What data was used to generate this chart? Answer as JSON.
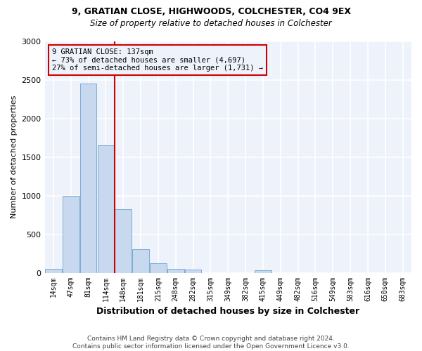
{
  "title1": "9, GRATIAN CLOSE, HIGHWOODS, COLCHESTER, CO4 9EX",
  "title2": "Size of property relative to detached houses in Colchester",
  "xlabel": "Distribution of detached houses by size in Colchester",
  "ylabel": "Number of detached properties",
  "bar_labels": [
    "14sqm",
    "47sqm",
    "81sqm",
    "114sqm",
    "148sqm",
    "181sqm",
    "215sqm",
    "248sqm",
    "282sqm",
    "315sqm",
    "349sqm",
    "382sqm",
    "415sqm",
    "449sqm",
    "482sqm",
    "516sqm",
    "549sqm",
    "583sqm",
    "616sqm",
    "650sqm",
    "683sqm"
  ],
  "bar_values": [
    55,
    1000,
    2450,
    1650,
    820,
    305,
    125,
    48,
    40,
    0,
    0,
    0,
    30,
    0,
    0,
    0,
    0,
    0,
    0,
    0,
    0
  ],
  "bar_color": "#c8d9ef",
  "bar_edge_color": "#7aadd4",
  "vline_color": "#cc0000",
  "vline_x": 3.5,
  "annotation_text": "9 GRATIAN CLOSE: 137sqm\n← 73% of detached houses are smaller (4,697)\n27% of semi-detached houses are larger (1,731) →",
  "annotation_box_color": "#cc0000",
  "footnote": "Contains HM Land Registry data © Crown copyright and database right 2024.\nContains public sector information licensed under the Open Government Licence v3.0.",
  "ylim": [
    0,
    3000
  ],
  "yticks": [
    0,
    500,
    1000,
    1500,
    2000,
    2500,
    3000
  ],
  "background_color": "#ffffff",
  "plot_bg_color": "#eef2fa",
  "grid_color": "#ffffff"
}
